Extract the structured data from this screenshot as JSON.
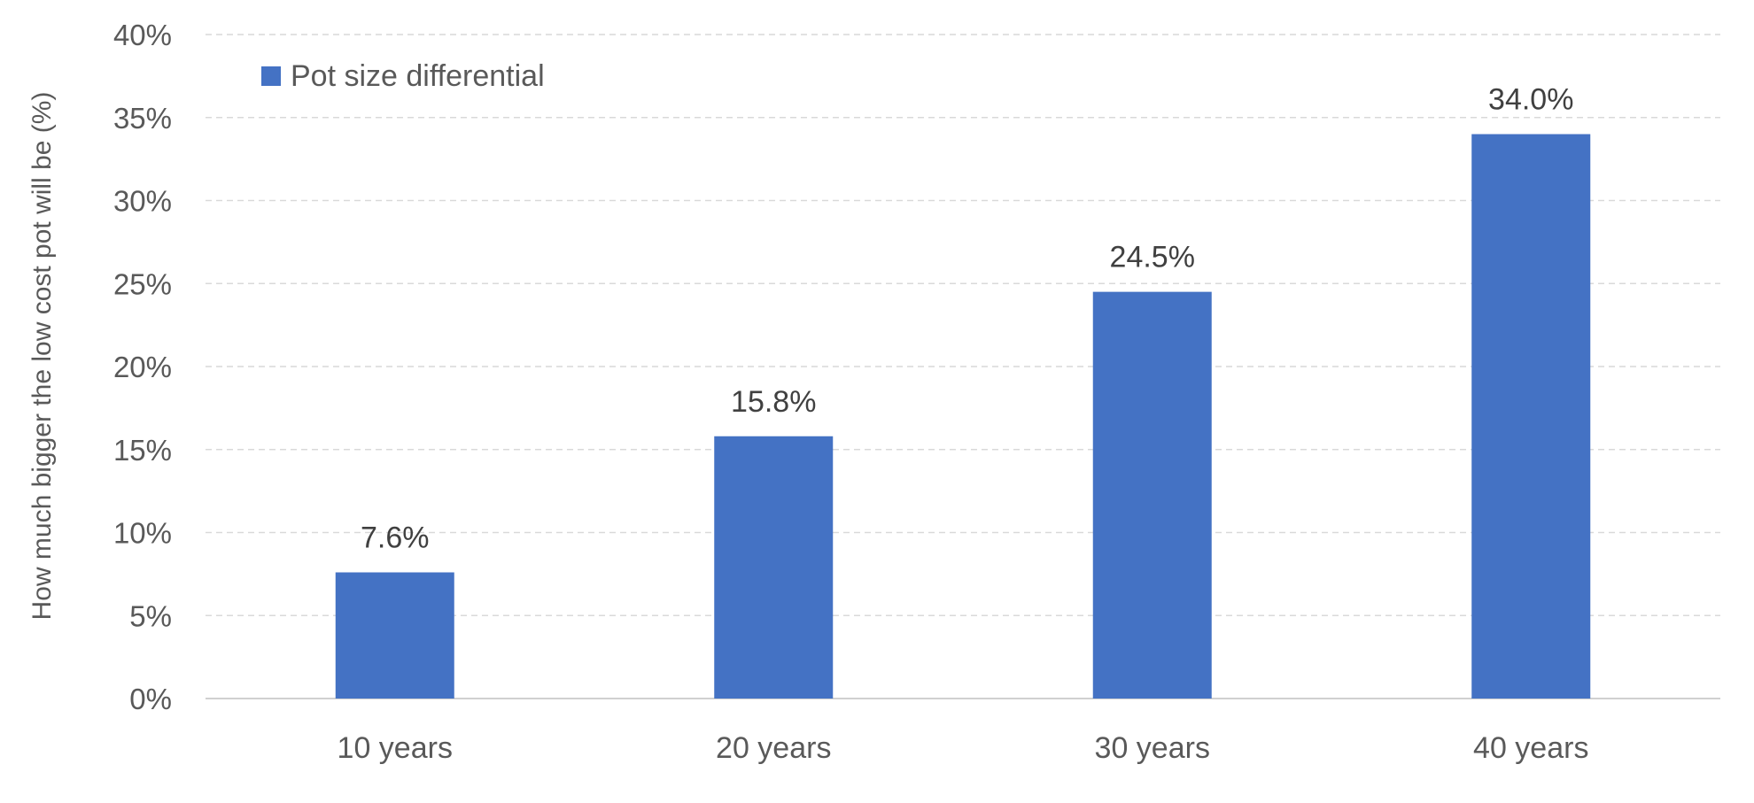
{
  "chart_data": {
    "type": "bar",
    "categories": [
      "10 years",
      "20 years",
      "30 years",
      "40 years"
    ],
    "series": [
      {
        "name": "Pot size differential",
        "values": [
          7.6,
          15.8,
          24.5,
          34.0
        ],
        "color": "#4472C4"
      }
    ],
    "data_labels": [
      "7.6%",
      "15.8%",
      "24.5%",
      "34.0%"
    ],
    "title": "",
    "xlabel": "",
    "ylabel": "How much bigger the low cost pot will be (%)",
    "ylim": [
      0,
      40
    ],
    "y_ticks": [
      0,
      5,
      10,
      15,
      20,
      25,
      30,
      35,
      40
    ],
    "y_tick_labels": [
      "0%",
      "5%",
      "10%",
      "15%",
      "20%",
      "25%",
      "30%",
      "35%",
      "40%"
    ],
    "grid": true,
    "legend_position": "top-left"
  }
}
